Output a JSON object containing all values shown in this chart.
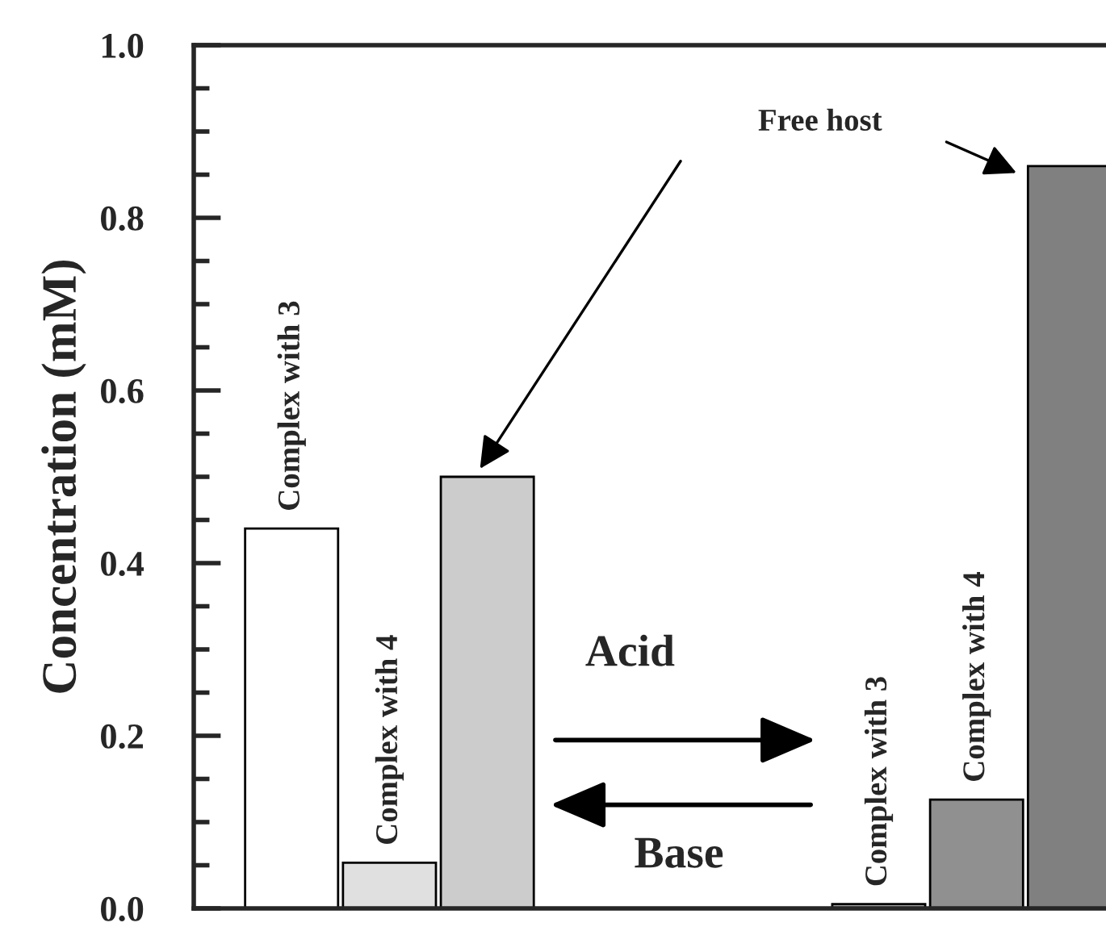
{
  "chart_data": {
    "type": "bar",
    "ylabel": "Concentration (mM)",
    "categories": [
      "Complex with 3",
      "Complex with 4",
      null,
      null,
      null,
      null,
      "Complex with 3",
      "Complex with 4",
      null
    ],
    "values": [
      0.44,
      0.053,
      0.5,
      null,
      null,
      null,
      0.005,
      0.126,
      0.86
    ],
    "colors": [
      "#ffffff",
      "#e0e0e0",
      "#cccccc",
      null,
      null,
      null,
      "#a0a0a0",
      "#909090",
      "#808080"
    ],
    "ylim": [
      0,
      1.0
    ],
    "yticks": [
      {
        "value": 0,
        "label": "0.0"
      },
      0.2,
      0.4,
      0.6,
      0.8,
      {
        "value": 1.0,
        "label": "1.0"
      }
    ],
    "grid": false,
    "annotations": [
      "Free host",
      "Acid",
      "Base"
    ]
  }
}
